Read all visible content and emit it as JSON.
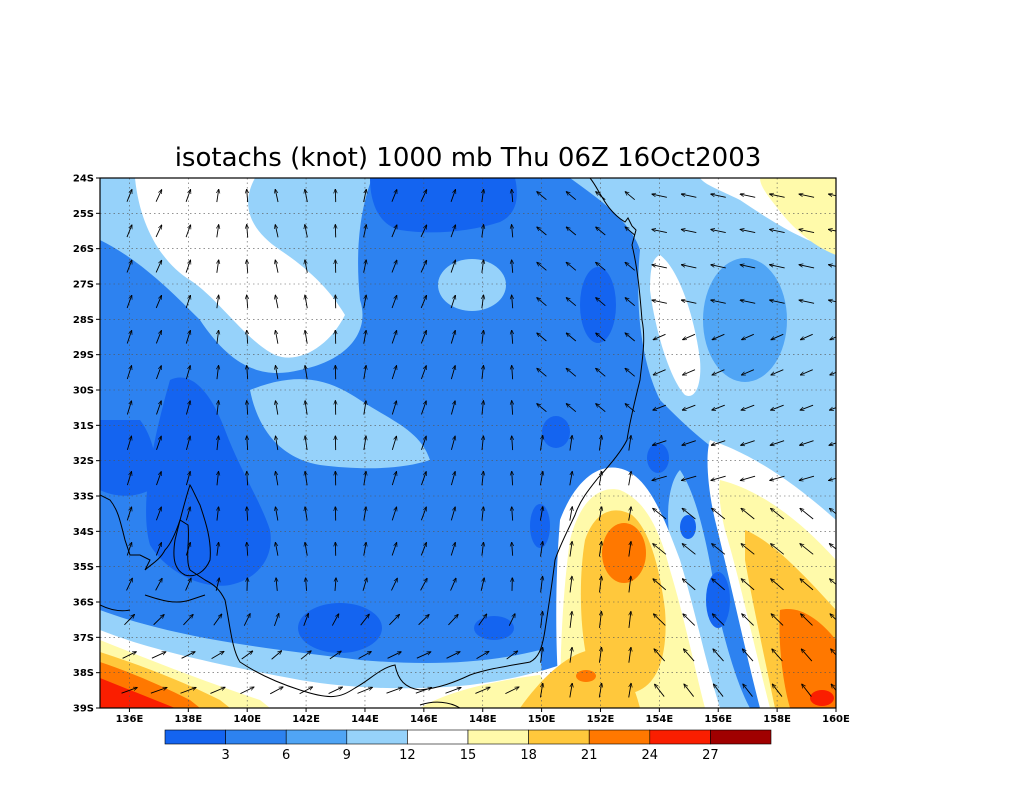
{
  "title": "isotachs (knot) 1000 mb Thu 06Z 16Oct2003",
  "map": {
    "lon_range": [
      135,
      160
    ],
    "lat_range": [
      -39,
      -24
    ],
    "x_tick_labels": [
      "136E",
      "138E",
      "140E",
      "142E",
      "144E",
      "146E",
      "148E",
      "150E",
      "152E",
      "154E",
      "156E",
      "158E",
      "160E"
    ],
    "x_tick_values": [
      136,
      138,
      140,
      142,
      144,
      146,
      148,
      150,
      152,
      154,
      156,
      158,
      160
    ],
    "y_tick_labels": [
      "24S",
      "25S",
      "26S",
      "27S",
      "28S",
      "29S",
      "30S",
      "31S",
      "32S",
      "33S",
      "34S",
      "35S",
      "36S",
      "37S",
      "38S",
      "39S"
    ],
    "y_tick_values": [
      -24,
      -25,
      -26,
      -27,
      -28,
      -29,
      -30,
      -31,
      -32,
      -33,
      -34,
      -35,
      -36,
      -37,
      -38,
      -39
    ],
    "grid": "dotted"
  },
  "colorbar": {
    "levels": [
      "3",
      "6",
      "9",
      "12",
      "15",
      "18",
      "21",
      "24",
      "27"
    ],
    "colors": [
      "#1464f0",
      "#2d82f0",
      "#50a5f5",
      "#96d2fa",
      "#ffffff",
      "#fffaaa",
      "#ffc83c",
      "#ff7800",
      "#fa1e00",
      "#a00000"
    ]
  },
  "palette": {
    "bg": "#2d82f0",
    "dark": "#1464f0",
    "mid": "#50a5f5",
    "light": "#96d2fa",
    "white": "#ffffff",
    "cream": "#fffaaa",
    "orange": "#ffc83c",
    "deeporange": "#ff7800",
    "red": "#fa1e00",
    "darkred": "#a00000"
  }
}
